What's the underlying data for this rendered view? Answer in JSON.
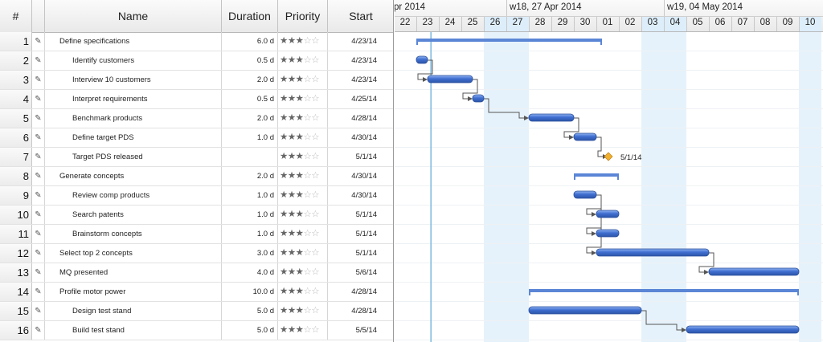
{
  "header": {
    "num": "#",
    "name": "Name",
    "duration": "Duration",
    "priority": "Priority",
    "start": "Start"
  },
  "tasks": [
    {
      "num": "1",
      "name": "Define specifications",
      "duration": "6.0 d",
      "stars": 3,
      "start": "4/23/14",
      "level": 0
    },
    {
      "num": "2",
      "name": "Identify customers",
      "duration": "0.5 d",
      "stars": 3,
      "start": "4/23/14",
      "level": 1
    },
    {
      "num": "3",
      "name": "Interview 10 customers",
      "duration": "2.0 d",
      "stars": 3,
      "start": "4/23/14",
      "level": 1
    },
    {
      "num": "4",
      "name": "Interpret requirements",
      "duration": "0.5 d",
      "stars": 3,
      "start": "4/25/14",
      "level": 1
    },
    {
      "num": "5",
      "name": "Benchmark products",
      "duration": "2.0 d",
      "stars": 3,
      "start": "4/28/14",
      "level": 1
    },
    {
      "num": "6",
      "name": "Define target PDS",
      "duration": "1.0 d",
      "stars": 3,
      "start": "4/30/14",
      "level": 1
    },
    {
      "num": "7",
      "name": "Target PDS released",
      "duration": "",
      "stars": 3,
      "start": "5/1/14",
      "level": 1
    },
    {
      "num": "8",
      "name": "Generate concepts",
      "duration": "2.0 d",
      "stars": 3,
      "start": "4/30/14",
      "level": 0
    },
    {
      "num": "9",
      "name": "Review comp products",
      "duration": "1.0 d",
      "stars": 3,
      "start": "4/30/14",
      "level": 1
    },
    {
      "num": "10",
      "name": "Search patents",
      "duration": "1.0 d",
      "stars": 3,
      "start": "5/1/14",
      "level": 1
    },
    {
      "num": "11",
      "name": "Brainstorm concepts",
      "duration": "1.0 d",
      "stars": 3,
      "start": "5/1/14",
      "level": 1
    },
    {
      "num": "12",
      "name": "Select top 2 concepts",
      "duration": "3.0 d",
      "stars": 3,
      "start": "5/1/14",
      "level": 0
    },
    {
      "num": "13",
      "name": "MQ presented",
      "duration": "4.0 d",
      "stars": 3,
      "start": "5/6/14",
      "level": 0
    },
    {
      "num": "14",
      "name": "Profile motor power",
      "duration": "10.0 d",
      "stars": 3,
      "start": "4/28/14",
      "level": 0
    },
    {
      "num": "15",
      "name": "Design test stand",
      "duration": "5.0 d",
      "stars": 3,
      "start": "4/28/14",
      "level": 1
    },
    {
      "num": "16",
      "name": "Build test stand",
      "duration": "5.0 d",
      "stars": 3,
      "start": "5/5/14",
      "level": 1
    }
  ],
  "timeline": {
    "weeks": [
      {
        "label": "pr 2014"
      },
      {
        "label": "w18, 27 Apr 2014"
      },
      {
        "label": "w19, 04 May 2014"
      }
    ],
    "days": [
      "22",
      "23",
      "24",
      "25",
      "26",
      "27",
      "28",
      "29",
      "30",
      "01",
      "02",
      "03",
      "04",
      "05",
      "06",
      "07",
      "08",
      "09",
      "10"
    ],
    "weekend_day_indices": [
      4,
      5,
      11,
      12,
      18
    ],
    "today_day_index": 1.65
  },
  "bars": [
    {
      "task": "1",
      "type": "summary",
      "start": 1.0,
      "end": 9.25
    },
    {
      "task": "2",
      "type": "task",
      "start": 1.0,
      "end": 1.5
    },
    {
      "task": "3",
      "type": "task",
      "start": 1.5,
      "end": 3.5
    },
    {
      "task": "4",
      "type": "task",
      "start": 3.5,
      "end": 4.0
    },
    {
      "task": "5",
      "type": "task",
      "start": 6.0,
      "end": 8.0
    },
    {
      "task": "6",
      "type": "task",
      "start": 8.0,
      "end": 9.0
    },
    {
      "task": "7",
      "type": "milestone",
      "start": 9.5,
      "label": "5/1/14"
    },
    {
      "task": "8",
      "type": "summary",
      "start": 8.0,
      "end": 10.0
    },
    {
      "task": "9",
      "type": "task",
      "start": 8.0,
      "end": 9.0
    },
    {
      "task": "10",
      "type": "task",
      "start": 9.0,
      "end": 10.0
    },
    {
      "task": "11",
      "type": "task",
      "start": 9.0,
      "end": 10.0
    },
    {
      "task": "12",
      "type": "task",
      "start": 9.0,
      "end": 14.0
    },
    {
      "task": "13",
      "type": "task",
      "start": 14.0,
      "end": 18.0
    },
    {
      "task": "14",
      "type": "summary",
      "start": 6.0,
      "end": 18.0
    },
    {
      "task": "15",
      "type": "task",
      "start": 6.0,
      "end": 11.0
    },
    {
      "task": "16",
      "type": "task",
      "start": 13.0,
      "end": 18.0
    }
  ],
  "dependencies": [
    {
      "from": "2",
      "to": "3"
    },
    {
      "from": "3",
      "to": "4"
    },
    {
      "from": "4",
      "to": "5"
    },
    {
      "from": "5",
      "to": "6"
    },
    {
      "from": "6",
      "to": "7"
    },
    {
      "from": "9",
      "to": "10"
    },
    {
      "from": "9",
      "to": "11"
    },
    {
      "from": "9",
      "to": "12"
    },
    {
      "from": "12",
      "to": "13"
    },
    {
      "from": "15",
      "to": "16"
    }
  ],
  "colors": {
    "bar": "#3f6fd1",
    "bar_highlight": "#8fb2ef",
    "summary": "#5b86d6",
    "milestone": "#f0b030",
    "weekend": "#e6f2fb",
    "weekend_header": "#ddeefa",
    "today_line": "#7ab8de",
    "grid": "#dde6ee",
    "link": "#555555"
  }
}
